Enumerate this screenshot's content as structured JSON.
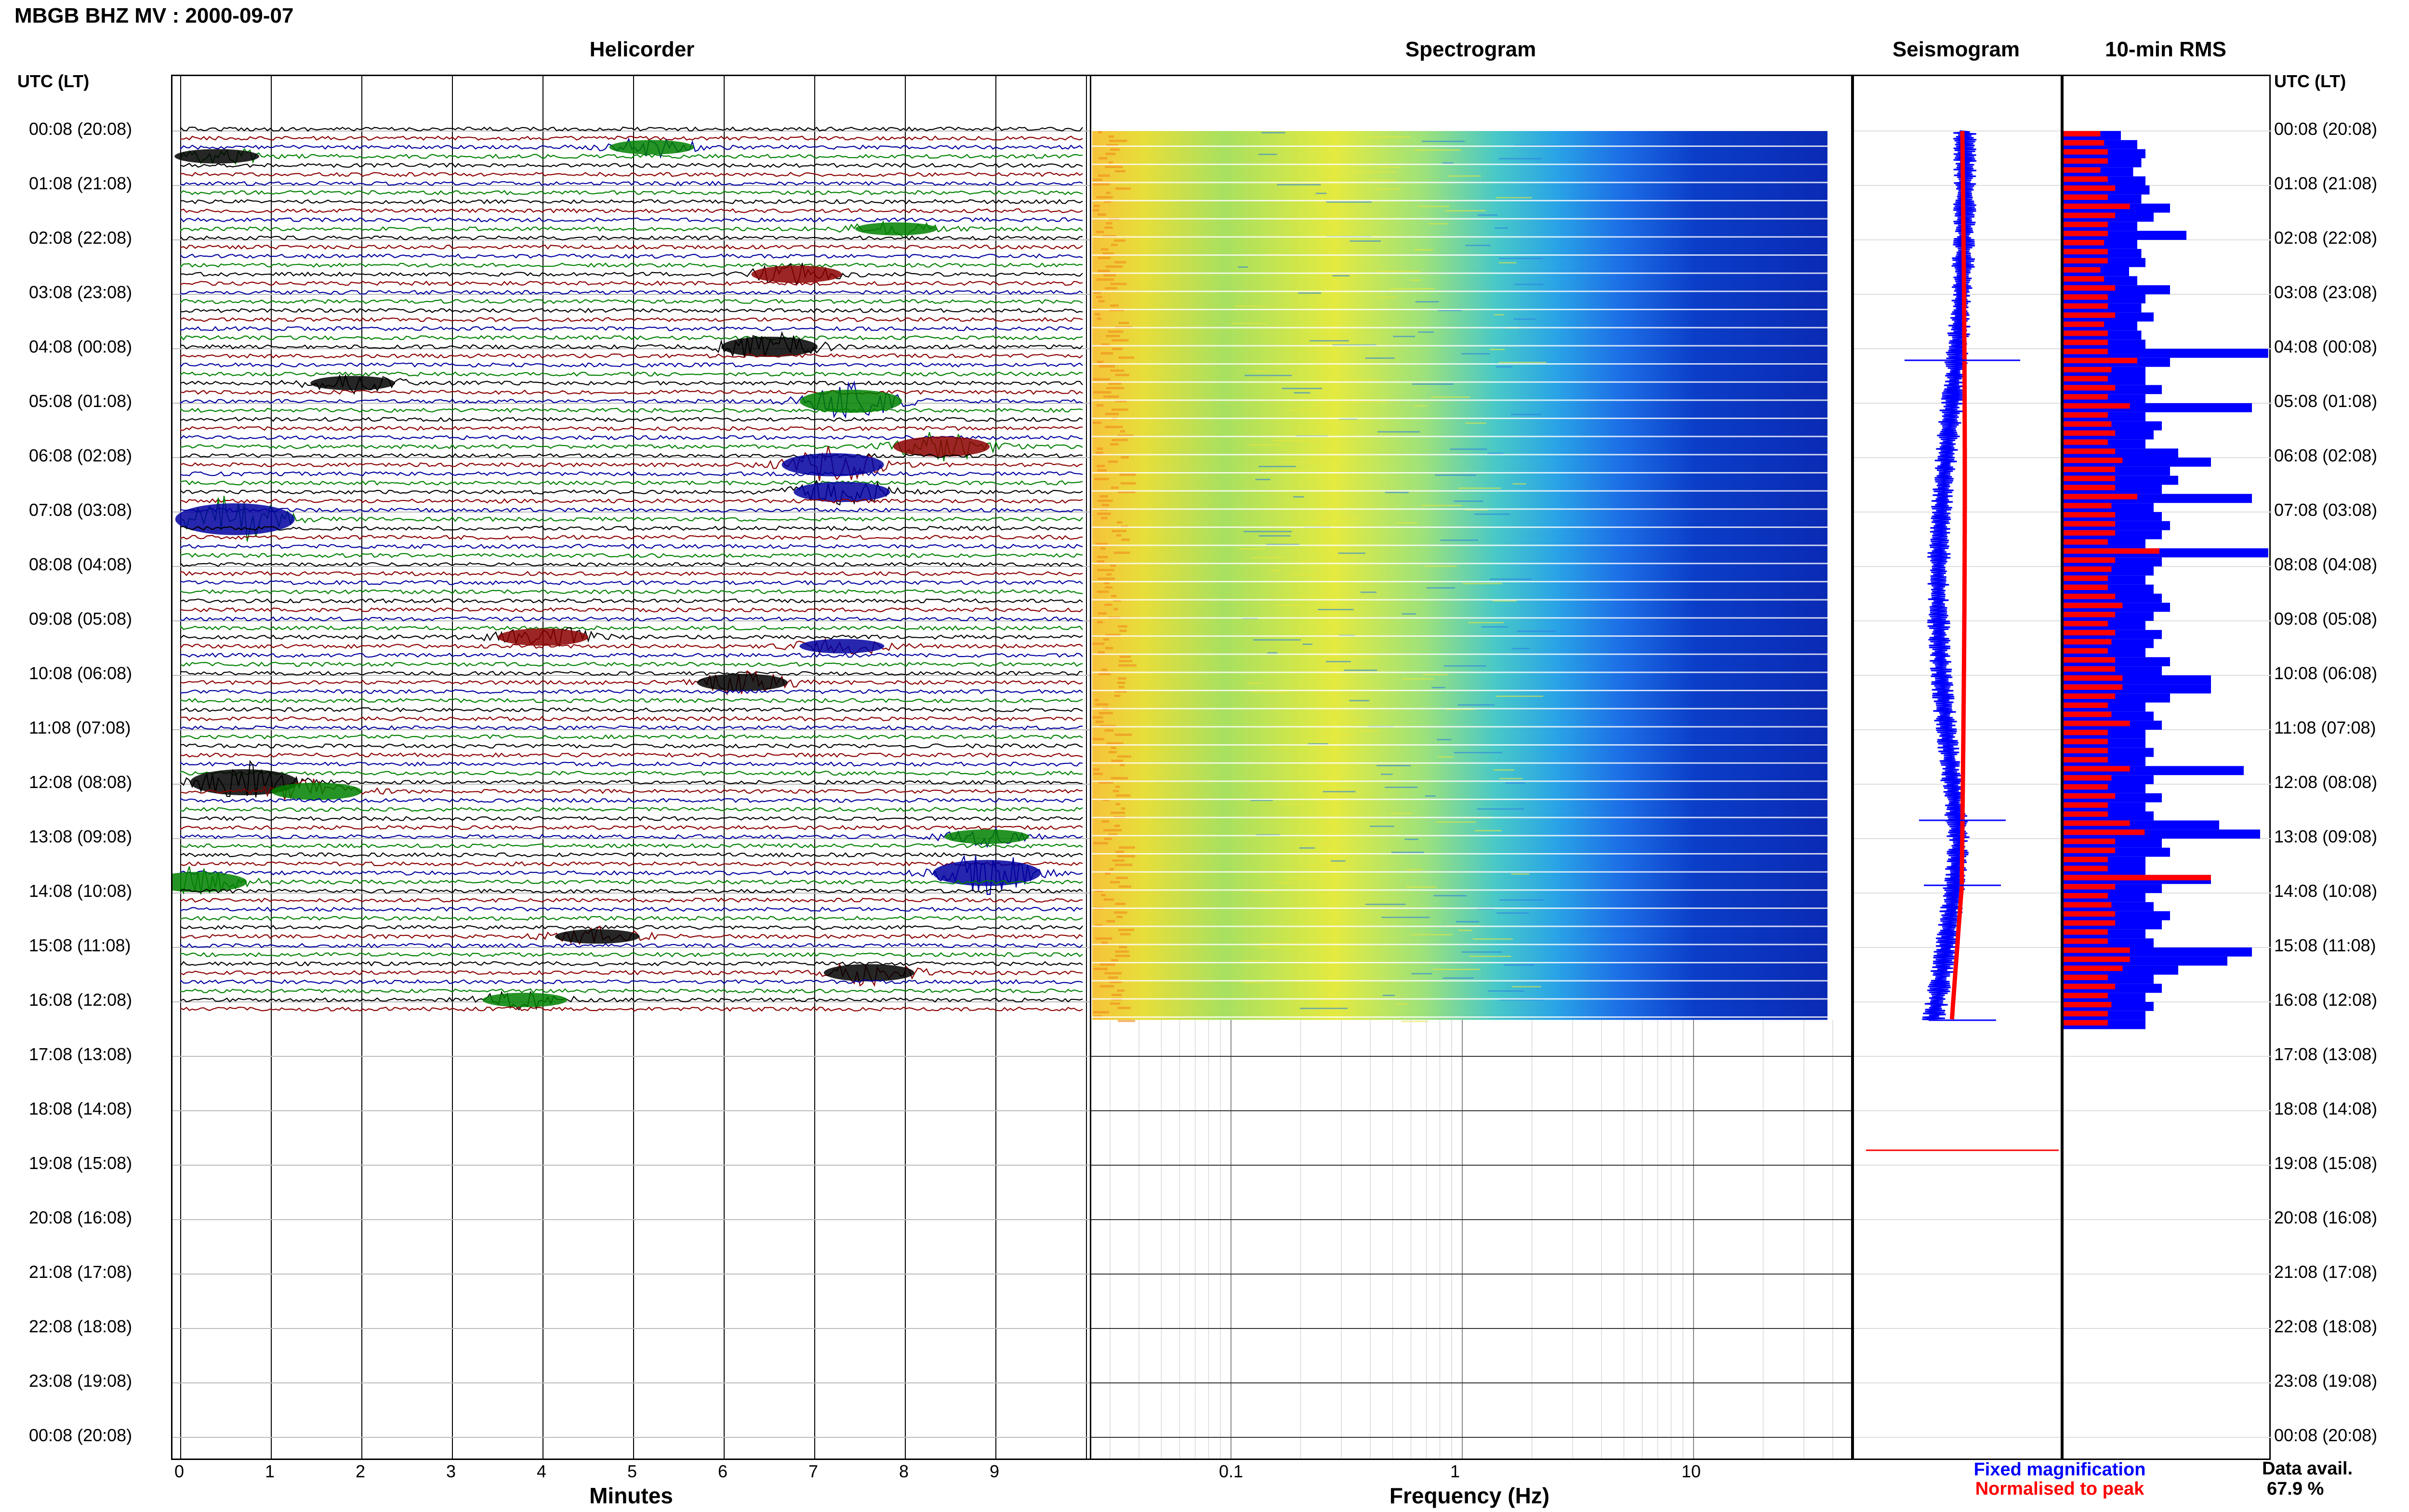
{
  "header": {
    "title": "MBGB BHZ MV : 2000-09-07"
  },
  "panels": {
    "helicorder": "Helicorder",
    "spectrogram": "Spectrogram",
    "seismogram": "Seismogram",
    "rms": "10-min RMS"
  },
  "axis": {
    "left_label": "UTC (LT)",
    "right_label": "UTC (LT)",
    "minutes_label": "Minutes",
    "frequency_label": "Frequency (Hz)"
  },
  "legend": {
    "fixed": "Fixed magnification",
    "normalised": "Normalised to peak",
    "fixed_color": "#0000ff",
    "normalised_color": "#ff0000"
  },
  "availability": {
    "label": "Data avail.",
    "value": "67.9 %"
  },
  "chart_data": {
    "type": "helicorder",
    "hour_labels": [
      "00:08 (20:08)",
      "01:08 (21:08)",
      "02:08 (22:08)",
      "03:08 (23:08)",
      "04:08 (00:08)",
      "05:08 (01:08)",
      "06:08 (02:08)",
      "07:08 (03:08)",
      "08:08 (04:08)",
      "09:08 (05:08)",
      "10:08 (06:08)",
      "11:08 (07:08)",
      "12:08 (08:08)",
      "13:08 (09:08)",
      "14:08 (10:08)",
      "15:08 (11:08)",
      "16:08 (12:08)",
      "17:08 (13:08)",
      "18:08 (14:08)",
      "19:08 (15:08)",
      "20:08 (16:08)",
      "21:08 (17:08)",
      "22:08 (18:08)",
      "23:08 (19:08)",
      "00:08 (20:08)"
    ],
    "minute_ticks": [
      "0",
      "1",
      "2",
      "3",
      "4",
      "5",
      "6",
      "7",
      "8",
      "9"
    ],
    "freq_ticks": [
      "0.1",
      "1",
      "10"
    ],
    "trace_colors": [
      "#000000",
      "#8b0000",
      "#0000a0",
      "#008000"
    ],
    "rows_per_hour": 6,
    "data_hours": 16.33,
    "events": [
      {
        "row": 2,
        "min": 5.2,
        "amp": 3,
        "color": "#008000"
      },
      {
        "row": 3,
        "min": 0.4,
        "amp": 3,
        "color": "#000000"
      },
      {
        "row": 11,
        "min": 7.9,
        "amp": 2.5,
        "color": "#008000"
      },
      {
        "row": 16,
        "min": 6.8,
        "amp": 4,
        "color": "#8b0000"
      },
      {
        "row": 24,
        "min": 6.5,
        "amp": 5,
        "color": "#000000"
      },
      {
        "row": 28,
        "min": 1.9,
        "amp": 3,
        "color": "#000000"
      },
      {
        "row": 30,
        "min": 7.4,
        "amp": 6,
        "color": "#008000"
      },
      {
        "row": 35,
        "min": 8.4,
        "amp": 5,
        "color": "#8b0000"
      },
      {
        "row": 37,
        "min": 7.2,
        "amp": 6,
        "color": "#0000a0"
      },
      {
        "row": 40,
        "min": 7.3,
        "amp": 5,
        "color": "#0000a0"
      },
      {
        "row": 43,
        "min": 0.6,
        "amp": 9,
        "color": "#0000a0"
      },
      {
        "row": 56,
        "min": 4.0,
        "amp": 4,
        "color": "#8b0000"
      },
      {
        "row": 57,
        "min": 7.3,
        "amp": 3,
        "color": "#0000a0"
      },
      {
        "row": 61,
        "min": 6.2,
        "amp": 4,
        "color": "#000000"
      },
      {
        "row": 72,
        "min": 0.7,
        "amp": 7,
        "color": "#000000"
      },
      {
        "row": 73,
        "min": 1.5,
        "amp": 4,
        "color": "#008000"
      },
      {
        "row": 78,
        "min": 8.9,
        "amp": 3,
        "color": "#008000"
      },
      {
        "row": 82,
        "min": 8.9,
        "amp": 7,
        "color": "#0000a0"
      },
      {
        "row": 83,
        "min": 0.2,
        "amp": 5,
        "color": "#008000"
      },
      {
        "row": 89,
        "min": 4.6,
        "amp": 3,
        "color": "#000000"
      },
      {
        "row": 93,
        "min": 7.6,
        "amp": 4,
        "color": "#000000"
      },
      {
        "row": 96,
        "min": 3.8,
        "amp": 3,
        "color": "#008000"
      }
    ],
    "rms_blue": [
      0.7,
      0.9,
      1.0,
      0.95,
      0.85,
      1.0,
      1.05,
      0.95,
      1.3,
      1.1,
      0.9,
      1.5,
      0.9,
      0.95,
      1.0,
      0.8,
      0.9,
      1.3,
      1.0,
      0.95,
      1.1,
      0.9,
      0.95,
      1.0,
      2.5,
      1.3,
      1.0,
      1.0,
      1.2,
      1.0,
      2.3,
      1.0,
      1.2,
      1.1,
      1.0,
      1.4,
      1.8,
      1.3,
      1.4,
      1.2,
      2.3,
      1.1,
      1.2,
      1.3,
      1.2,
      1.0,
      2.5,
      1.2,
      1.1,
      1.0,
      1.1,
      1.2,
      1.3,
      1.1,
      1.0,
      1.2,
      1.1,
      1.0,
      1.3,
      1.2,
      1.8,
      1.8,
      1.3,
      1.0,
      1.1,
      1.2,
      1.0,
      1.0,
      1.1,
      1.0,
      2.2,
      1.1,
      1.0,
      1.2,
      1.0,
      1.1,
      1.9,
      2.4,
      1.2,
      1.3,
      1.0,
      1.0,
      1.8,
      1.2,
      1.0,
      1.1,
      1.3,
      1.2,
      1.0,
      1.1,
      2.3,
      2.0,
      1.4,
      1.1,
      1.2,
      1.0,
      1.1,
      1.0,
      1.0
    ],
    "rms_red": [
      0.5,
      0.55,
      0.6,
      0.6,
      0.5,
      0.6,
      0.7,
      0.6,
      0.9,
      0.7,
      0.6,
      0.6,
      0.55,
      0.6,
      0.6,
      0.5,
      0.55,
      0.7,
      0.6,
      0.6,
      0.7,
      0.55,
      0.6,
      0.6,
      0.6,
      1.0,
      0.65,
      0.6,
      0.7,
      0.6,
      0.9,
      0.6,
      0.65,
      0.7,
      0.6,
      0.7,
      0.8,
      0.7,
      0.7,
      0.7,
      1.0,
      0.65,
      0.7,
      0.7,
      0.7,
      0.6,
      1.3,
      0.7,
      0.65,
      0.6,
      0.6,
      0.7,
      0.8,
      0.7,
      0.6,
      0.7,
      0.65,
      0.6,
      0.7,
      0.7,
      0.8,
      0.8,
      0.7,
      0.6,
      0.65,
      0.9,
      0.6,
      0.6,
      0.6,
      0.6,
      0.9,
      0.65,
      0.6,
      0.7,
      0.6,
      0.6,
      0.9,
      1.1,
      0.7,
      0.7,
      0.6,
      0.6,
      2.0,
      0.7,
      0.6,
      0.65,
      0.7,
      0.7,
      0.6,
      0.6,
      0.9,
      0.9,
      0.8,
      0.6,
      0.7,
      0.6,
      0.65,
      0.6,
      0.6
    ]
  }
}
